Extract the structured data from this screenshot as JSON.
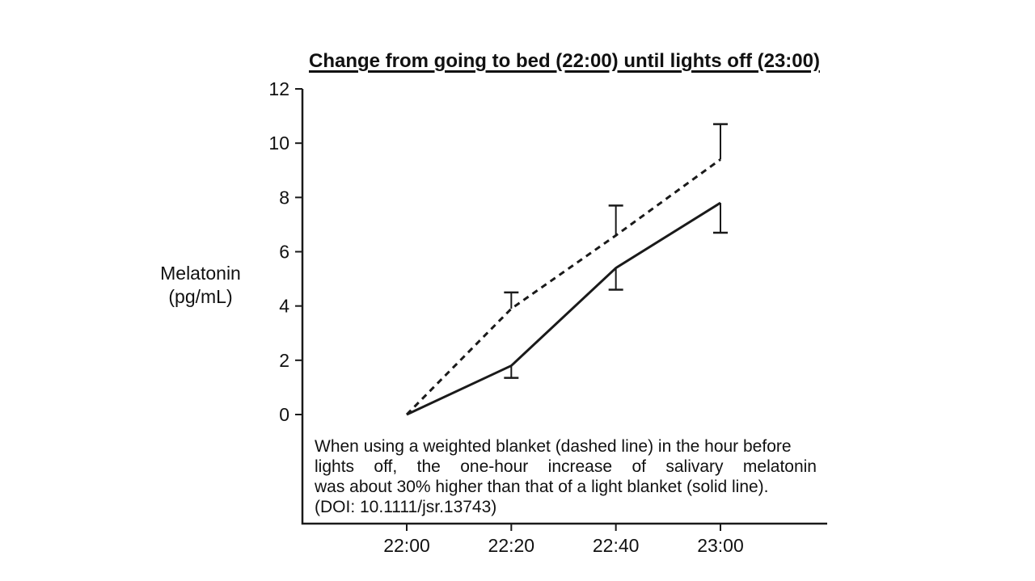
{
  "chart_data": {
    "type": "line",
    "title": "Change from going to bed (22:00) until lights off (23:00)",
    "ylabel": "Melatonin\n(pg/mL)",
    "xlabel": "",
    "categories": [
      "22:00",
      "22:20",
      "22:40",
      "23:00"
    ],
    "ylim": [
      0,
      12
    ],
    "yticks": [
      0,
      2,
      4,
      6,
      8,
      10,
      12
    ],
    "grid": false,
    "legend": false,
    "color": "#1a1a1a",
    "series": [
      {
        "name": "Weighted blanket",
        "line_style": "dashed",
        "values": [
          0,
          3.9,
          6.6,
          9.4
        ],
        "error_caps": [
          null,
          4.5,
          7.7,
          10.7
        ],
        "error_direction": "up"
      },
      {
        "name": "Light blanket",
        "line_style": "solid",
        "values": [
          0,
          1.8,
          5.4,
          7.8
        ],
        "error_caps": [
          null,
          1.35,
          4.6,
          6.7
        ],
        "error_direction": "down"
      }
    ]
  },
  "annotation": {
    "lines": [
      "When using a weighted blanket (dashed line) in the hour before",
      "lights off, the one-hour increase of salivary melatonin",
      "was about 30% higher than that of a light blanket (solid line).",
      "(DOI: 10.1111/jsr.13743)"
    ]
  }
}
